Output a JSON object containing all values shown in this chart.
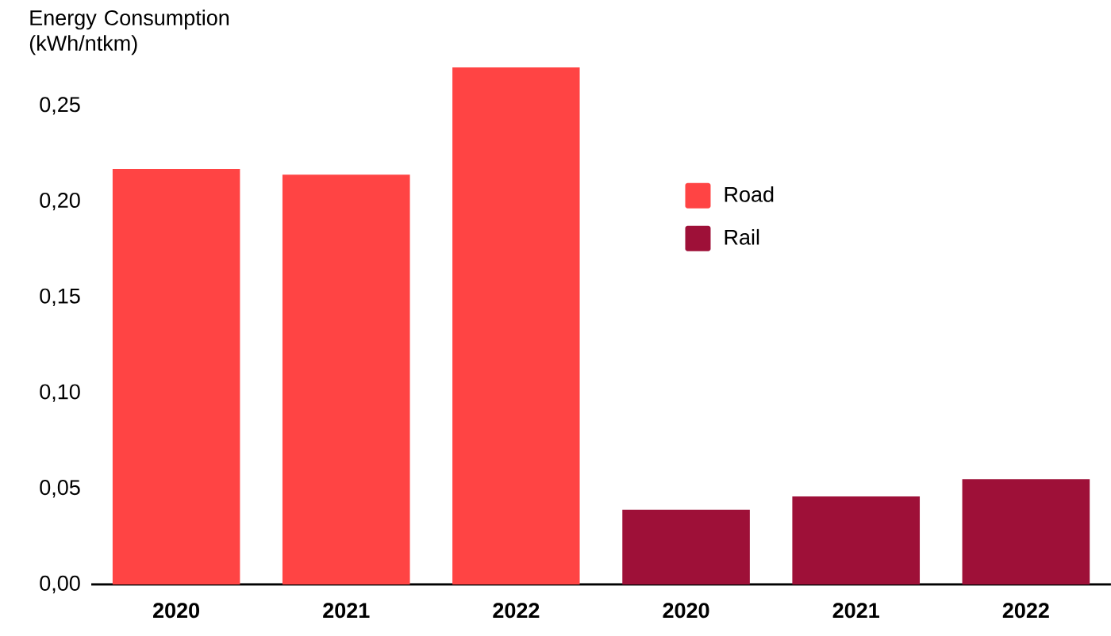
{
  "chart_data": {
    "type": "bar",
    "ylabel": "Energy Consumption (kWh/ntkm)",
    "categories": [
      "2020",
      "2021",
      "2022",
      "2020",
      "2021",
      "2022"
    ],
    "series": [
      {
        "name": "Road",
        "color": "#ff4444",
        "values": [
          0.217,
          0.214,
          0.27,
          null,
          null,
          null
        ]
      },
      {
        "name": "Rail",
        "color": "#9e1038",
        "values": [
          null,
          null,
          null,
          0.039,
          0.046,
          0.055
        ]
      }
    ],
    "ylim": [
      0,
      0.27
    ],
    "yticks": [
      {
        "value": 0,
        "label": "0,00"
      },
      {
        "value": 0.05,
        "label": "0,05"
      },
      {
        "value": 0.1,
        "label": "0,10"
      },
      {
        "value": 0.15,
        "label": "0,15"
      },
      {
        "value": 0.2,
        "label": "0,20"
      },
      {
        "value": 0.25,
        "label": "0,25"
      }
    ],
    "grid": false,
    "legend": "top right"
  }
}
